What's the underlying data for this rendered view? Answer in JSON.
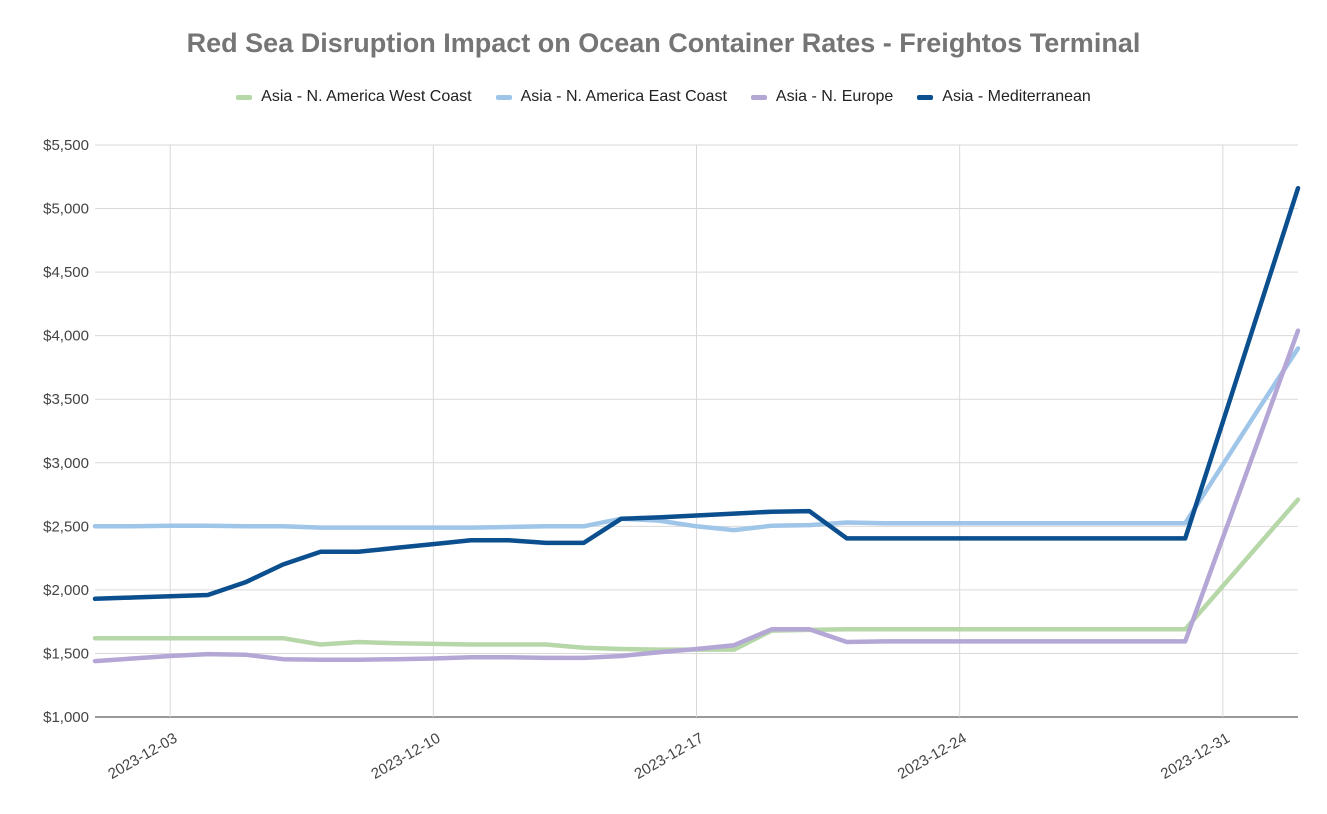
{
  "chart_data": {
    "type": "line",
    "title": "Red Sea Disruption Impact on Ocean Container Rates - Freightos Terminal",
    "xlabel": "",
    "ylabel": "",
    "ylim": [
      1000,
      5500
    ],
    "yticks": [
      1000,
      1500,
      2000,
      2500,
      3000,
      3500,
      4000,
      4500,
      5000,
      5500
    ],
    "ytick_labels": [
      "$1,000",
      "$1,500",
      "$2,000",
      "$2,500",
      "$3,000",
      "$3,500",
      "$4,000",
      "$4,500",
      "$5,000",
      "$5,500"
    ],
    "xlim": [
      0,
      32
    ],
    "xticks": [
      2,
      9,
      16,
      23,
      30
    ],
    "xtick_labels": [
      "2023-12-03",
      "2023-12-10",
      "2023-12-17",
      "2023-12-24",
      "2023-12-31"
    ],
    "grid": true,
    "legend_position": "top",
    "x": [
      0,
      1,
      2,
      3,
      4,
      5,
      6,
      7,
      8,
      9,
      10,
      11,
      12,
      13,
      14,
      15,
      16,
      17,
      18,
      19,
      20,
      21,
      22,
      23,
      24,
      25,
      26,
      27,
      28,
      29,
      30,
      31,
      32
    ],
    "series": [
      {
        "name": "Asia - N. America West Coast",
        "color": "#b6d7a8",
        "values": [
          1620,
          1620,
          1620,
          1620,
          1620,
          1620,
          1570,
          1590,
          1580,
          1575,
          1570,
          1570,
          1570,
          1545,
          1535,
          1530,
          1530,
          1530,
          1680,
          1685,
          1690,
          1690,
          1690,
          1690,
          1690,
          1690,
          1690,
          1690,
          1690,
          1690,
          2030,
          2370,
          2710
        ]
      },
      {
        "name": "Asia - N. America East Coast",
        "color": "#9fc5e8",
        "values": [
          2500,
          2500,
          2505,
          2505,
          2500,
          2500,
          2490,
          2490,
          2490,
          2490,
          2490,
          2495,
          2500,
          2500,
          2560,
          2545,
          2500,
          2470,
          2505,
          2510,
          2530,
          2525,
          2525,
          2525,
          2525,
          2525,
          2525,
          2525,
          2525,
          2525,
          2985,
          3445,
          3900
        ]
      },
      {
        "name": "Asia - N. Europe",
        "color": "#b4a7d6",
        "values": [
          1440,
          1460,
          1480,
          1495,
          1490,
          1455,
          1450,
          1450,
          1455,
          1460,
          1470,
          1470,
          1465,
          1465,
          1480,
          1510,
          1535,
          1565,
          1690,
          1690,
          1590,
          1595,
          1595,
          1595,
          1595,
          1595,
          1595,
          1595,
          1595,
          1595,
          2410,
          3220,
          4040
        ]
      },
      {
        "name": "Asia - Mediterranean",
        "color": "#0b4f8f",
        "values": [
          1930,
          1940,
          1950,
          1960,
          2060,
          2200,
          2300,
          2300,
          2330,
          2360,
          2390,
          2390,
          2370,
          2370,
          2560,
          2570,
          2585,
          2600,
          2615,
          2620,
          2405,
          2405,
          2405,
          2405,
          2405,
          2405,
          2405,
          2405,
          2405,
          2405,
          3320,
          4240,
          5160
        ]
      }
    ]
  }
}
